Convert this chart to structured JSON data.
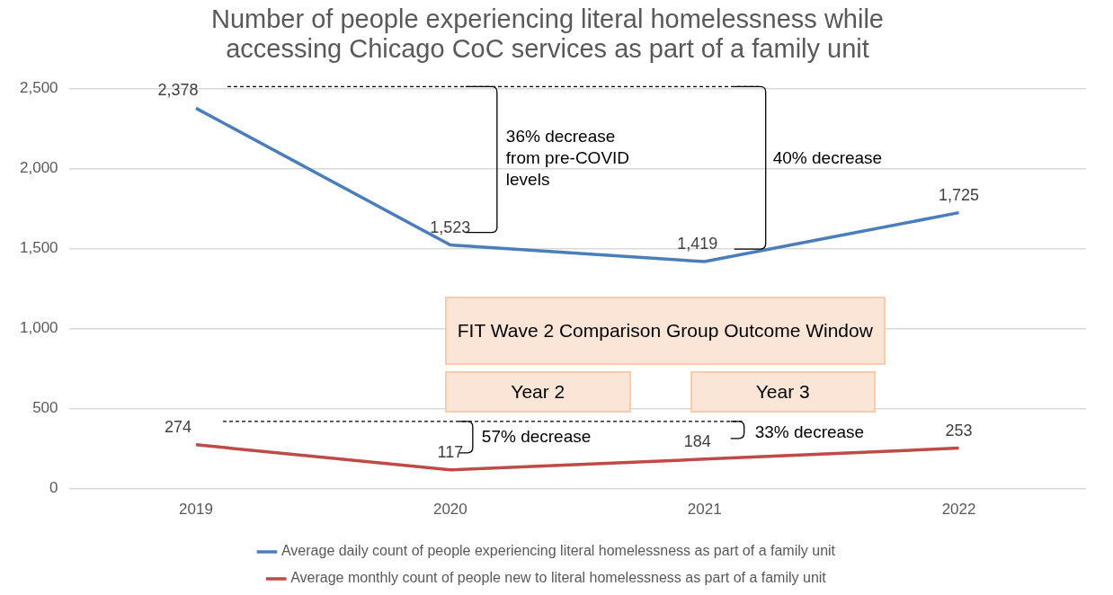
{
  "chart_data": {
    "type": "line",
    "title": "Number of people experiencing literal homelessness while accessing Chicago CoC services as part of a family unit",
    "categories": [
      "2019",
      "2020",
      "2021",
      "2022"
    ],
    "series": [
      {
        "name": "Average daily count of people experiencing literal homelessness as part of a family unit",
        "color": "#4a7ebb",
        "values": [
          2378,
          1523,
          1419,
          1725
        ],
        "value_labels": [
          "2,378",
          "1,523",
          "1,419",
          "1,725"
        ]
      },
      {
        "name": "Average monthly count of people new to literal homelessness as part of a family unit",
        "color": "#be4b48",
        "values": [
          274,
          117,
          184,
          253
        ],
        "value_labels": [
          "274",
          "117",
          "184",
          "253"
        ]
      }
    ],
    "ylim": [
      0,
      2500
    ],
    "yticks": [
      0,
      500,
      {
        "value": 1000,
        "label": "1,000"
      },
      {
        "value": 1500,
        "label": "1,500"
      },
      {
        "value": 2000,
        "label": "2,000"
      },
      {
        "value": 2500,
        "label": "2,500"
      }
    ],
    "grid": "y",
    "legend": "bottom",
    "marker": "none",
    "line_style": "solid",
    "annotations": [
      "36% decrease from pre-COVID levels",
      "40% decrease",
      "FIT Wave 2 Comparison Group Outcome Window",
      "Year 2",
      "Year 3",
      "57% decrease",
      "33% decrease"
    ]
  }
}
